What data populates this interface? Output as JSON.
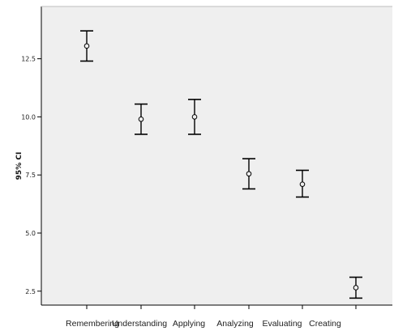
{
  "chart_data": {
    "type": "errorbar",
    "title": "",
    "xlabel": "",
    "ylabel": "95% CI",
    "categories": [
      "Remembering",
      "Understanding",
      "Applying",
      "Analyzing",
      "Evaluating",
      "Creating"
    ],
    "series": [
      {
        "means": [
          13.05,
          9.9,
          10.0,
          7.55,
          7.1,
          2.65
        ],
        "lower": [
          12.4,
          9.25,
          9.25,
          6.9,
          6.55,
          2.2
        ],
        "upper": [
          13.7,
          10.55,
          10.75,
          8.2,
          7.7,
          3.1
        ]
      }
    ],
    "ylim": [
      1.9,
      14.75
    ],
    "yticks": [
      2.5,
      5.0,
      7.5,
      10.0,
      12.5
    ],
    "ytick_labels": [
      "2.5",
      "5.0",
      "7.5",
      "10.0",
      "12.5"
    ],
    "grid": false,
    "plot_background": "#efefef",
    "marker": "open circle",
    "colors": {
      "plot_bg": "#efefef",
      "axis": "#000000",
      "marks": "#000000"
    }
  }
}
